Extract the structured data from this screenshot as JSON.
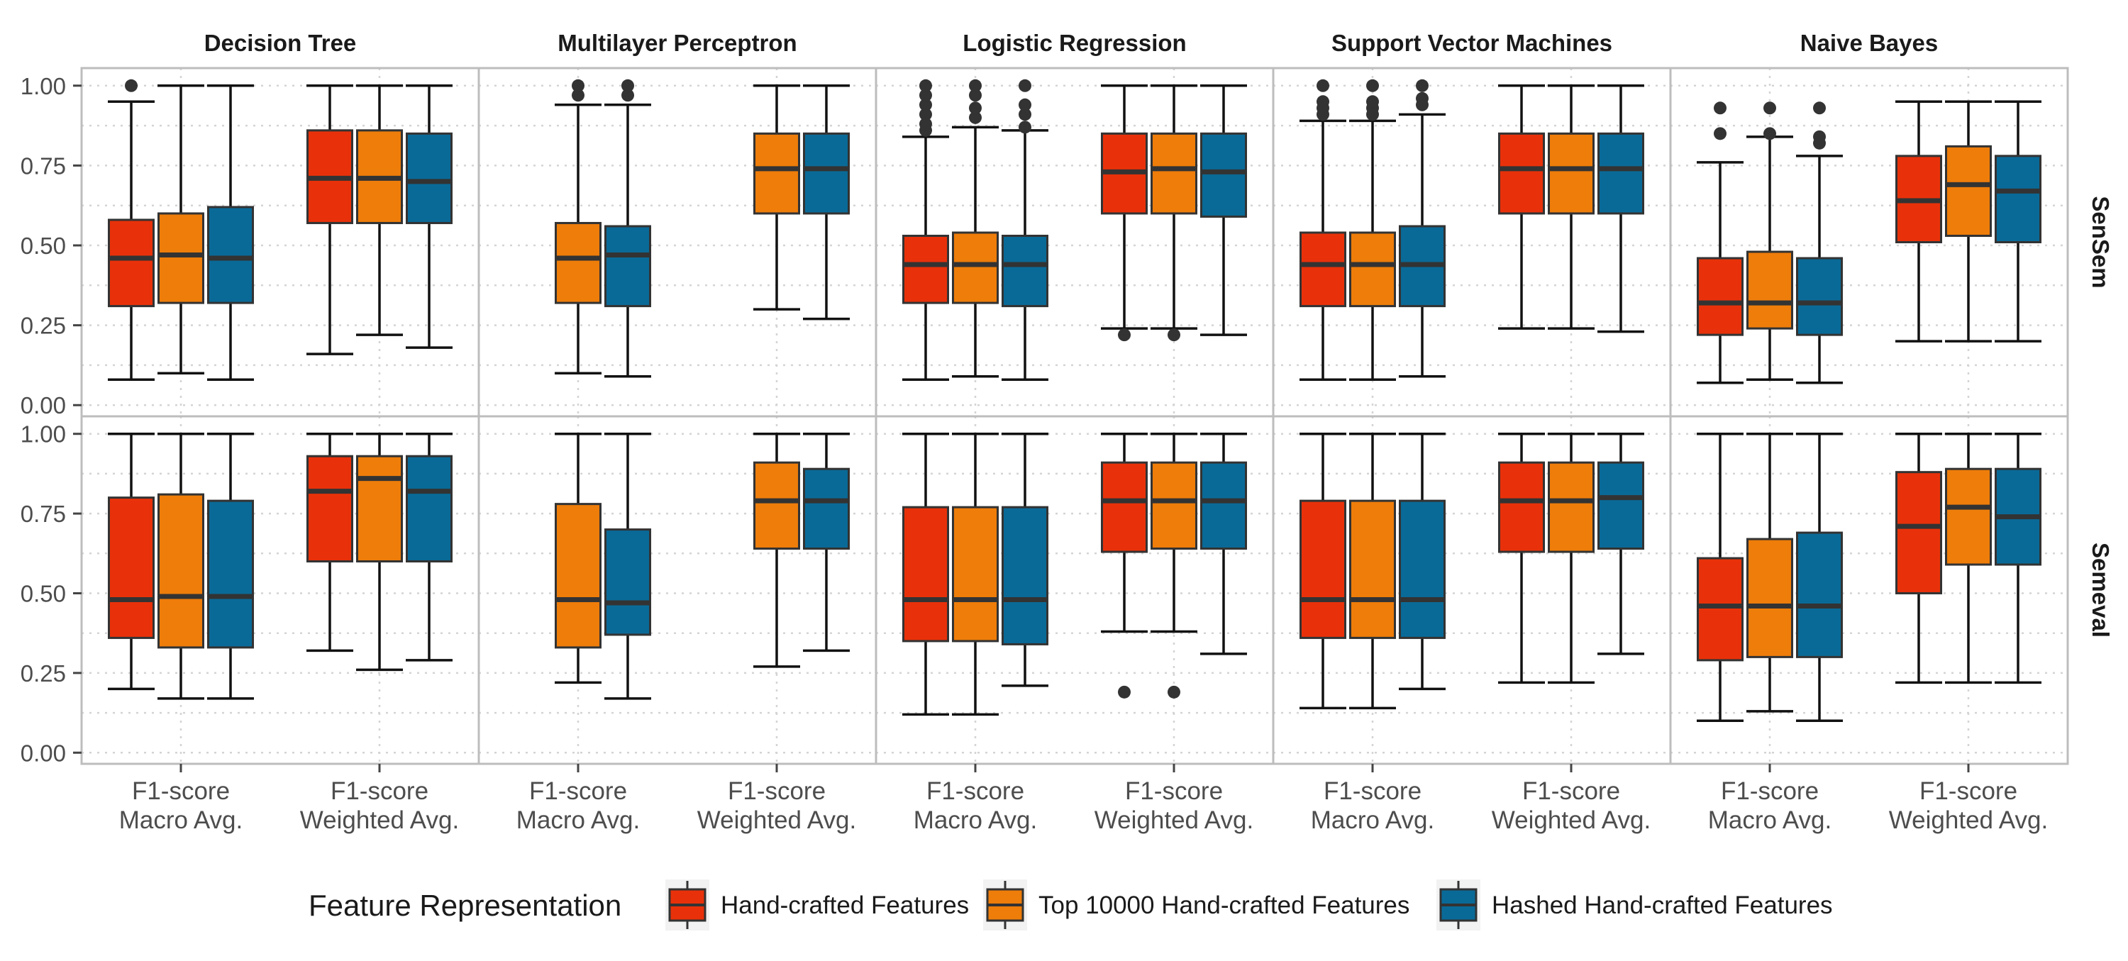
{
  "chart_data": {
    "type": "boxplot",
    "panels_columns": [
      "Decision Tree",
      "Multilayer Perceptron",
      "Logistic Regression",
      "Support Vector Machines",
      "Naive Bayes"
    ],
    "panels_rows": [
      "SenSem",
      "Semeval"
    ],
    "categories": [
      "F1-score\nMacro Avg.",
      "F1-score\nWeighted Avg."
    ],
    "yticks": [
      "0.00",
      "0.25",
      "0.50",
      "0.75",
      "1.00"
    ],
    "ylim": [
      -0.035,
      1.055
    ],
    "grid": true,
    "legend": {
      "title": "Feature Representation",
      "placement": "bottom",
      "entries": [
        "Hand-crafted Features",
        "Top 10000 Hand-crafted Features",
        "Hashed Hand-crafted Features"
      ]
    },
    "series": [
      {
        "name": "Hand-crafted Features",
        "color": "#E8310A"
      },
      {
        "name": "Top 10000 Hand-crafted Features",
        "color": "#EE7D0A"
      },
      {
        "name": "Hashed Hand-crafted Features",
        "color": "#0A6A97"
      }
    ],
    "boxes": [
      {
        "row": 0,
        "col": 0,
        "cat": 0,
        "series": 0,
        "stats": [
          0.08,
          0.31,
          0.46,
          0.58,
          0.95
        ],
        "outliers": [
          1.0
        ]
      },
      {
        "row": 0,
        "col": 0,
        "cat": 0,
        "series": 1,
        "stats": [
          0.1,
          0.32,
          0.47,
          0.6,
          1.0
        ],
        "outliers": []
      },
      {
        "row": 0,
        "col": 0,
        "cat": 0,
        "series": 2,
        "stats": [
          0.08,
          0.32,
          0.46,
          0.62,
          1.0
        ],
        "outliers": []
      },
      {
        "row": 0,
        "col": 0,
        "cat": 1,
        "series": 0,
        "stats": [
          0.16,
          0.57,
          0.71,
          0.86,
          1.0
        ],
        "outliers": []
      },
      {
        "row": 0,
        "col": 0,
        "cat": 1,
        "series": 1,
        "stats": [
          0.22,
          0.57,
          0.71,
          0.86,
          1.0
        ],
        "outliers": []
      },
      {
        "row": 0,
        "col": 0,
        "cat": 1,
        "series": 2,
        "stats": [
          0.18,
          0.57,
          0.7,
          0.85,
          1.0
        ],
        "outliers": []
      },
      {
        "row": 0,
        "col": 1,
        "cat": 0,
        "series": 1,
        "stats": [
          0.1,
          0.32,
          0.46,
          0.57,
          0.94
        ],
        "outliers": [
          0.97,
          1.0
        ]
      },
      {
        "row": 0,
        "col": 1,
        "cat": 0,
        "series": 2,
        "stats": [
          0.09,
          0.31,
          0.47,
          0.56,
          0.94
        ],
        "outliers": [
          0.97,
          1.0
        ]
      },
      {
        "row": 0,
        "col": 1,
        "cat": 1,
        "series": 1,
        "stats": [
          0.3,
          0.6,
          0.74,
          0.85,
          1.0
        ],
        "outliers": []
      },
      {
        "row": 0,
        "col": 1,
        "cat": 1,
        "series": 2,
        "stats": [
          0.27,
          0.6,
          0.74,
          0.85,
          1.0
        ],
        "outliers": []
      },
      {
        "row": 0,
        "col": 2,
        "cat": 0,
        "series": 0,
        "stats": [
          0.08,
          0.32,
          0.44,
          0.53,
          0.84
        ],
        "outliers": [
          0.86,
          0.88,
          0.91,
          0.94,
          0.97,
          1.0
        ]
      },
      {
        "row": 0,
        "col": 2,
        "cat": 0,
        "series": 1,
        "stats": [
          0.09,
          0.32,
          0.44,
          0.54,
          0.87
        ],
        "outliers": [
          0.9,
          0.93,
          0.97,
          1.0
        ]
      },
      {
        "row": 0,
        "col": 2,
        "cat": 0,
        "series": 2,
        "stats": [
          0.08,
          0.31,
          0.44,
          0.53,
          0.86
        ],
        "outliers": [
          0.87,
          0.91,
          0.94,
          1.0
        ]
      },
      {
        "row": 0,
        "col": 2,
        "cat": 1,
        "series": 0,
        "stats": [
          0.24,
          0.6,
          0.73,
          0.85,
          1.0
        ],
        "outliers": [
          0.22
        ]
      },
      {
        "row": 0,
        "col": 2,
        "cat": 1,
        "series": 1,
        "stats": [
          0.24,
          0.6,
          0.74,
          0.85,
          1.0
        ],
        "outliers": [
          0.22
        ]
      },
      {
        "row": 0,
        "col": 2,
        "cat": 1,
        "series": 2,
        "stats": [
          0.22,
          0.59,
          0.73,
          0.85,
          1.0
        ],
        "outliers": []
      },
      {
        "row": 0,
        "col": 3,
        "cat": 0,
        "series": 0,
        "stats": [
          0.08,
          0.31,
          0.44,
          0.54,
          0.89
        ],
        "outliers": [
          0.91,
          0.93,
          0.95,
          1.0
        ]
      },
      {
        "row": 0,
        "col": 3,
        "cat": 0,
        "series": 1,
        "stats": [
          0.08,
          0.31,
          0.44,
          0.54,
          0.89
        ],
        "outliers": [
          0.91,
          0.93,
          0.95,
          1.0
        ]
      },
      {
        "row": 0,
        "col": 3,
        "cat": 0,
        "series": 2,
        "stats": [
          0.09,
          0.31,
          0.44,
          0.56,
          0.91
        ],
        "outliers": [
          0.94,
          0.96,
          1.0
        ]
      },
      {
        "row": 0,
        "col": 3,
        "cat": 1,
        "series": 0,
        "stats": [
          0.24,
          0.6,
          0.74,
          0.85,
          1.0
        ],
        "outliers": []
      },
      {
        "row": 0,
        "col": 3,
        "cat": 1,
        "series": 1,
        "stats": [
          0.24,
          0.6,
          0.74,
          0.85,
          1.0
        ],
        "outliers": []
      },
      {
        "row": 0,
        "col": 3,
        "cat": 1,
        "series": 2,
        "stats": [
          0.23,
          0.6,
          0.74,
          0.85,
          1.0
        ],
        "outliers": []
      },
      {
        "row": 0,
        "col": 4,
        "cat": 0,
        "series": 0,
        "stats": [
          0.07,
          0.22,
          0.32,
          0.46,
          0.76
        ],
        "outliers": [
          0.85,
          0.93
        ]
      },
      {
        "row": 0,
        "col": 4,
        "cat": 0,
        "series": 1,
        "stats": [
          0.08,
          0.24,
          0.32,
          0.48,
          0.84
        ],
        "outliers": [
          0.85,
          0.93
        ]
      },
      {
        "row": 0,
        "col": 4,
        "cat": 0,
        "series": 2,
        "stats": [
          0.07,
          0.22,
          0.32,
          0.46,
          0.78
        ],
        "outliers": [
          0.82,
          0.84,
          0.93
        ]
      },
      {
        "row": 0,
        "col": 4,
        "cat": 1,
        "series": 0,
        "stats": [
          0.2,
          0.51,
          0.64,
          0.78,
          0.95
        ],
        "outliers": []
      },
      {
        "row": 0,
        "col": 4,
        "cat": 1,
        "series": 1,
        "stats": [
          0.2,
          0.53,
          0.69,
          0.81,
          0.95
        ],
        "outliers": []
      },
      {
        "row": 0,
        "col": 4,
        "cat": 1,
        "series": 2,
        "stats": [
          0.2,
          0.51,
          0.67,
          0.78,
          0.95
        ],
        "outliers": []
      },
      {
        "row": 1,
        "col": 0,
        "cat": 0,
        "series": 0,
        "stats": [
          0.2,
          0.36,
          0.48,
          0.8,
          1.0
        ],
        "outliers": []
      },
      {
        "row": 1,
        "col": 0,
        "cat": 0,
        "series": 1,
        "stats": [
          0.17,
          0.33,
          0.49,
          0.81,
          1.0
        ],
        "outliers": []
      },
      {
        "row": 1,
        "col": 0,
        "cat": 0,
        "series": 2,
        "stats": [
          0.17,
          0.33,
          0.49,
          0.79,
          1.0
        ],
        "outliers": []
      },
      {
        "row": 1,
        "col": 0,
        "cat": 1,
        "series": 0,
        "stats": [
          0.32,
          0.6,
          0.82,
          0.93,
          1.0
        ],
        "outliers": []
      },
      {
        "row": 1,
        "col": 0,
        "cat": 1,
        "series": 1,
        "stats": [
          0.26,
          0.6,
          0.86,
          0.93,
          1.0
        ],
        "outliers": []
      },
      {
        "row": 1,
        "col": 0,
        "cat": 1,
        "series": 2,
        "stats": [
          0.29,
          0.6,
          0.82,
          0.93,
          1.0
        ],
        "outliers": []
      },
      {
        "row": 1,
        "col": 1,
        "cat": 0,
        "series": 1,
        "stats": [
          0.22,
          0.33,
          0.48,
          0.78,
          1.0
        ],
        "outliers": []
      },
      {
        "row": 1,
        "col": 1,
        "cat": 0,
        "series": 2,
        "stats": [
          0.17,
          0.37,
          0.47,
          0.7,
          1.0
        ],
        "outliers": []
      },
      {
        "row": 1,
        "col": 1,
        "cat": 1,
        "series": 1,
        "stats": [
          0.27,
          0.64,
          0.79,
          0.91,
          1.0
        ],
        "outliers": []
      },
      {
        "row": 1,
        "col": 1,
        "cat": 1,
        "series": 2,
        "stats": [
          0.32,
          0.64,
          0.79,
          0.89,
          1.0
        ],
        "outliers": []
      },
      {
        "row": 1,
        "col": 2,
        "cat": 0,
        "series": 0,
        "stats": [
          0.12,
          0.35,
          0.48,
          0.77,
          1.0
        ],
        "outliers": []
      },
      {
        "row": 1,
        "col": 2,
        "cat": 0,
        "series": 1,
        "stats": [
          0.12,
          0.35,
          0.48,
          0.77,
          1.0
        ],
        "outliers": []
      },
      {
        "row": 1,
        "col": 2,
        "cat": 0,
        "series": 2,
        "stats": [
          0.21,
          0.34,
          0.48,
          0.77,
          1.0
        ],
        "outliers": []
      },
      {
        "row": 1,
        "col": 2,
        "cat": 1,
        "series": 0,
        "stats": [
          0.38,
          0.63,
          0.79,
          0.91,
          1.0
        ],
        "outliers": [
          0.19
        ]
      },
      {
        "row": 1,
        "col": 2,
        "cat": 1,
        "series": 1,
        "stats": [
          0.38,
          0.64,
          0.79,
          0.91,
          1.0
        ],
        "outliers": [
          0.19
        ]
      },
      {
        "row": 1,
        "col": 2,
        "cat": 1,
        "series": 2,
        "stats": [
          0.31,
          0.64,
          0.79,
          0.91,
          1.0
        ],
        "outliers": []
      },
      {
        "row": 1,
        "col": 3,
        "cat": 0,
        "series": 0,
        "stats": [
          0.14,
          0.36,
          0.48,
          0.79,
          1.0
        ],
        "outliers": []
      },
      {
        "row": 1,
        "col": 3,
        "cat": 0,
        "series": 1,
        "stats": [
          0.14,
          0.36,
          0.48,
          0.79,
          1.0
        ],
        "outliers": []
      },
      {
        "row": 1,
        "col": 3,
        "cat": 0,
        "series": 2,
        "stats": [
          0.2,
          0.36,
          0.48,
          0.79,
          1.0
        ],
        "outliers": []
      },
      {
        "row": 1,
        "col": 3,
        "cat": 1,
        "series": 0,
        "stats": [
          0.22,
          0.63,
          0.79,
          0.91,
          1.0
        ],
        "outliers": []
      },
      {
        "row": 1,
        "col": 3,
        "cat": 1,
        "series": 1,
        "stats": [
          0.22,
          0.63,
          0.79,
          0.91,
          1.0
        ],
        "outliers": []
      },
      {
        "row": 1,
        "col": 3,
        "cat": 1,
        "series": 2,
        "stats": [
          0.31,
          0.64,
          0.8,
          0.91,
          1.0
        ],
        "outliers": []
      },
      {
        "row": 1,
        "col": 4,
        "cat": 0,
        "series": 0,
        "stats": [
          0.1,
          0.29,
          0.46,
          0.61,
          1.0
        ],
        "outliers": []
      },
      {
        "row": 1,
        "col": 4,
        "cat": 0,
        "series": 1,
        "stats": [
          0.13,
          0.3,
          0.46,
          0.67,
          1.0
        ],
        "outliers": []
      },
      {
        "row": 1,
        "col": 4,
        "cat": 0,
        "series": 2,
        "stats": [
          0.1,
          0.3,
          0.46,
          0.69,
          1.0
        ],
        "outliers": []
      },
      {
        "row": 1,
        "col": 4,
        "cat": 1,
        "series": 0,
        "stats": [
          0.22,
          0.5,
          0.71,
          0.88,
          1.0
        ],
        "outliers": []
      },
      {
        "row": 1,
        "col": 4,
        "cat": 1,
        "series": 1,
        "stats": [
          0.22,
          0.59,
          0.77,
          0.89,
          1.0
        ],
        "outliers": []
      },
      {
        "row": 1,
        "col": 4,
        "cat": 1,
        "series": 2,
        "stats": [
          0.22,
          0.59,
          0.74,
          0.89,
          1.0
        ],
        "outliers": []
      }
    ]
  }
}
